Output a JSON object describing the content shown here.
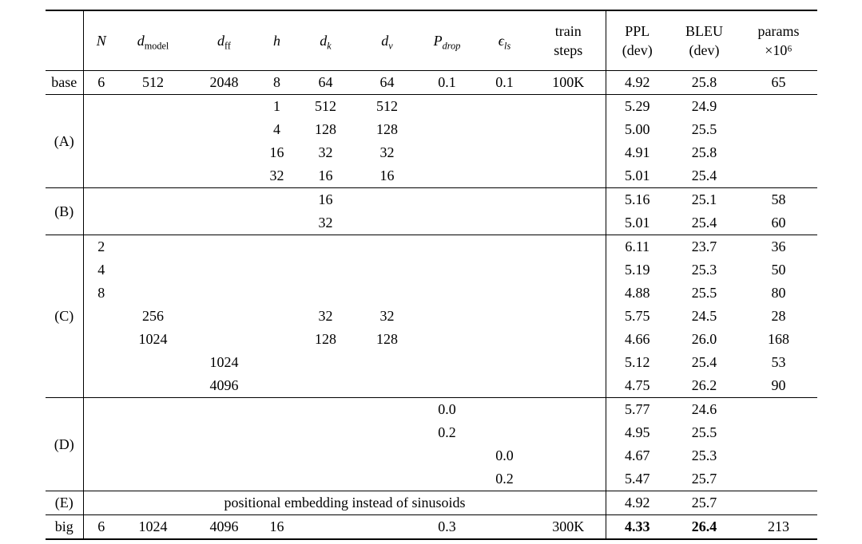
{
  "table": {
    "columns": [
      {
        "key": "row-label",
        "header": {
          "lines": [
            ""
          ]
        }
      },
      {
        "key": "N",
        "header": {
          "var": "N",
          "italic": true
        }
      },
      {
        "key": "d-model",
        "header": {
          "var": "d",
          "italic": true,
          "sub": "model",
          "sub_italic": false
        }
      },
      {
        "key": "d-ff",
        "header": {
          "var": "d",
          "italic": true,
          "sub": "ff",
          "sub_italic": false
        }
      },
      {
        "key": "h",
        "header": {
          "var": "h",
          "italic": true
        }
      },
      {
        "key": "d-k",
        "header": {
          "var": "d",
          "italic": true,
          "sub": "k",
          "sub_italic": true
        }
      },
      {
        "key": "d-v",
        "header": {
          "var": "d",
          "italic": true,
          "sub": "v",
          "sub_italic": true
        }
      },
      {
        "key": "P-drop",
        "header": {
          "var": "P",
          "italic": true,
          "sub": "drop",
          "sub_italic": true
        }
      },
      {
        "key": "epsilon-ls",
        "header": {
          "var": "ϵ",
          "italic": true,
          "sub": "ls",
          "sub_italic": true
        }
      },
      {
        "key": "train-steps",
        "header": {
          "lines": [
            "train",
            "steps"
          ]
        }
      },
      {
        "key": "ppl-dev",
        "header": {
          "lines": [
            "PPL",
            "(dev)"
          ]
        }
      },
      {
        "key": "bleu-dev",
        "header": {
          "lines": [
            "BLEU",
            "(dev)"
          ]
        }
      },
      {
        "key": "params",
        "header": {
          "lines": [
            "params",
            "×10⁶"
          ]
        }
      }
    ],
    "groups": [
      {
        "label": "base",
        "rows": [
          [
            "6",
            "512",
            "2048",
            "8",
            "64",
            "64",
            "0.1",
            "0.1",
            "100K",
            "4.92",
            "25.8",
            "65"
          ]
        ]
      },
      {
        "label": "(A)",
        "rows": [
          [
            "",
            "",
            "",
            "1",
            "512",
            "512",
            "",
            "",
            "",
            "5.29",
            "24.9",
            ""
          ],
          [
            "",
            "",
            "",
            "4",
            "128",
            "128",
            "",
            "",
            "",
            "5.00",
            "25.5",
            ""
          ],
          [
            "",
            "",
            "",
            "16",
            "32",
            "32",
            "",
            "",
            "",
            "4.91",
            "25.8",
            ""
          ],
          [
            "",
            "",
            "",
            "32",
            "16",
            "16",
            "",
            "",
            "",
            "5.01",
            "25.4",
            ""
          ]
        ]
      },
      {
        "label": "(B)",
        "rows": [
          [
            "",
            "",
            "",
            "",
            "16",
            "",
            "",
            "",
            "",
            "5.16",
            "25.1",
            "58"
          ],
          [
            "",
            "",
            "",
            "",
            "32",
            "",
            "",
            "",
            "",
            "5.01",
            "25.4",
            "60"
          ]
        ]
      },
      {
        "label": "(C)",
        "rows": [
          [
            "2",
            "",
            "",
            "",
            "",
            "",
            "",
            "",
            "",
            "6.11",
            "23.7",
            "36"
          ],
          [
            "4",
            "",
            "",
            "",
            "",
            "",
            "",
            "",
            "",
            "5.19",
            "25.3",
            "50"
          ],
          [
            "8",
            "",
            "",
            "",
            "",
            "",
            "",
            "",
            "",
            "4.88",
            "25.5",
            "80"
          ],
          [
            "",
            "256",
            "",
            "",
            "32",
            "32",
            "",
            "",
            "",
            "5.75",
            "24.5",
            "28"
          ],
          [
            "",
            "1024",
            "",
            "",
            "128",
            "128",
            "",
            "",
            "",
            "4.66",
            "26.0",
            "168"
          ],
          [
            "",
            "",
            "1024",
            "",
            "",
            "",
            "",
            "",
            "",
            "5.12",
            "25.4",
            "53"
          ],
          [
            "",
            "",
            "4096",
            "",
            "",
            "",
            "",
            "",
            "",
            "4.75",
            "26.2",
            "90"
          ]
        ]
      },
      {
        "label": "(D)",
        "rows": [
          [
            "",
            "",
            "",
            "",
            "",
            "",
            "0.0",
            "",
            "",
            "5.77",
            "24.6",
            ""
          ],
          [
            "",
            "",
            "",
            "",
            "",
            "",
            "0.2",
            "",
            "",
            "4.95",
            "25.5",
            ""
          ],
          [
            "",
            "",
            "",
            "",
            "",
            "",
            "",
            "0.0",
            "",
            "4.67",
            "25.3",
            ""
          ],
          [
            "",
            "",
            "",
            "",
            "",
            "",
            "",
            "0.2",
            "",
            "5.47",
            "25.7",
            ""
          ]
        ]
      },
      {
        "label": "(E)",
        "span_text": "positional embedding instead of sinusoids",
        "rows": [
          [
            "",
            "",
            "",
            "",
            "",
            "",
            "",
            "",
            "",
            "4.92",
            "25.7",
            ""
          ]
        ]
      },
      {
        "label": "big",
        "bold_cells": [
          9,
          10
        ],
        "rows": [
          [
            "6",
            "1024",
            "4096",
            "16",
            "",
            "",
            "0.3",
            "",
            "300K",
            "4.33",
            "26.4",
            "213"
          ]
        ]
      }
    ]
  }
}
